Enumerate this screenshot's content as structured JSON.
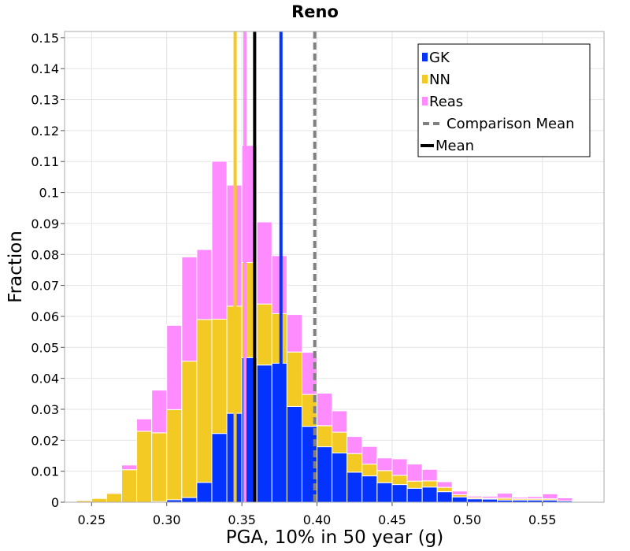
{
  "chart_data": {
    "type": "bar",
    "stacked": true,
    "title": "Reno",
    "xlabel": "PGA, 10% in 50 year (g)",
    "ylabel": "Fraction",
    "xlim": [
      0.232,
      0.591
    ],
    "ylim": [
      0,
      0.152
    ],
    "bin_width": 0.01,
    "bin_start": 0.24,
    "x_ticks": [
      0.25,
      0.3,
      0.35,
      0.4,
      0.45,
      0.5,
      0.55
    ],
    "x_tick_labels": [
      "0.25",
      "0.30",
      "0.35",
      "0.40",
      "0.45",
      "0.50",
      "0.55"
    ],
    "y_ticks": [
      0,
      0.01,
      0.02,
      0.03,
      0.04,
      0.05,
      0.06,
      0.07,
      0.08,
      0.09,
      0.1,
      0.11,
      0.12,
      0.13,
      0.14,
      0.15
    ],
    "y_tick_labels": [
      "0",
      "0.01",
      "0.02",
      "0.03",
      "0.04",
      "0.05",
      "0.06",
      "0.07",
      "0.08",
      "0.09",
      "0.1",
      "0.11",
      "0.12",
      "0.13",
      "0.14",
      "0.15"
    ],
    "series": [
      {
        "name": "GK",
        "color": "#0433ff",
        "values": [
          0,
          0,
          0,
          0,
          0,
          0.0002,
          0.0008,
          0.0015,
          0.0064,
          0.0222,
          0.0287,
          0.0467,
          0.0443,
          0.0449,
          0.0309,
          0.0245,
          0.0179,
          0.0159,
          0.0097,
          0.0085,
          0.0063,
          0.0057,
          0.0045,
          0.0049,
          0.0034,
          0.0017,
          0.0011,
          0.001,
          0.0007,
          0.0007,
          0.0007,
          0.0007,
          0.0004,
          0.0002
        ]
      },
      {
        "name": "NN",
        "color": "#f3c923",
        "values": [
          0.0005,
          0.0012,
          0.0028,
          0.0105,
          0.0229,
          0.0222,
          0.0291,
          0.044,
          0.0526,
          0.0369,
          0.0346,
          0.0307,
          0.0197,
          0.016,
          0.0176,
          0.0103,
          0.0068,
          0.0067,
          0.006,
          0.0038,
          0.0039,
          0.003,
          0.0023,
          0.002,
          0.0014,
          0.0007,
          0.0004,
          0.0003,
          0.0006,
          0.0004,
          0.0004,
          0.0004,
          0,
          0
        ]
      },
      {
        "name": "Reas",
        "color": "#ff8cff",
        "values": [
          0,
          0,
          0.0003,
          0.0015,
          0.004,
          0.0138,
          0.0272,
          0.0337,
          0.0226,
          0.051,
          0.0391,
          0.0378,
          0.0265,
          0.0187,
          0.0121,
          0.0136,
          0.0105,
          0.0069,
          0.0055,
          0.0057,
          0.0041,
          0.0053,
          0.0055,
          0.0037,
          0.0018,
          0.0012,
          0.0005,
          0.0006,
          0.0016,
          0.0005,
          0.0007,
          0.0016,
          0.001,
          0
        ]
      }
    ],
    "vertical_lines": [
      {
        "name": "GK-mean",
        "x": 0.376,
        "color": "#0433ff",
        "style": "solid"
      },
      {
        "name": "NN-mean",
        "x": 0.3455,
        "color": "#f3c923",
        "style": "solid"
      },
      {
        "name": "Reas-mean",
        "x": 0.352,
        "color": "#ff8cff",
        "style": "solid"
      },
      {
        "name": "mean",
        "x": 0.3585,
        "color": "#000000",
        "style": "solid"
      },
      {
        "name": "comparison-mean",
        "x": 0.3985,
        "color": "#808080",
        "style": "dashed"
      }
    ],
    "legend": {
      "position": "top-right",
      "entries": [
        {
          "label": "GK",
          "color": "#0433ff",
          "kind": "bar"
        },
        {
          "label": "NN",
          "color": "#f3c923",
          "kind": "bar"
        },
        {
          "label": "Reas",
          "color": "#ff8cff",
          "kind": "bar"
        },
        {
          "label": "Comparison Mean",
          "color": "#808080",
          "kind": "dashed-line"
        },
        {
          "label": "Mean",
          "color": "#000000",
          "kind": "line"
        }
      ]
    },
    "grid": true
  }
}
